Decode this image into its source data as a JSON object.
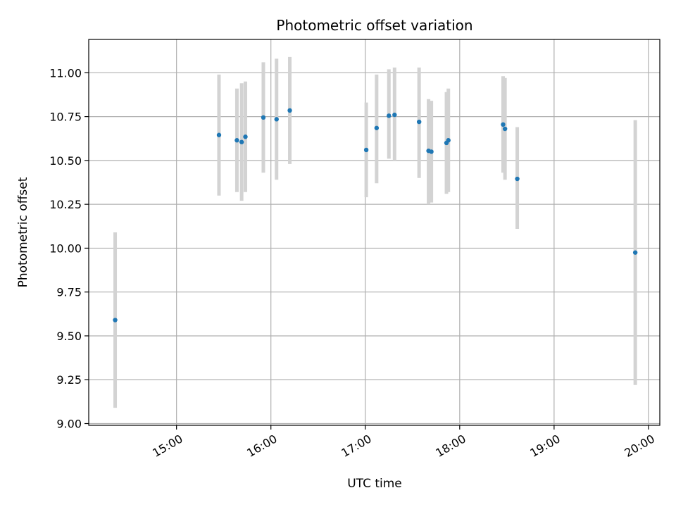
{
  "chart_data": {
    "type": "scatter",
    "title": "Photometric offset variation",
    "xlabel": "UTC time",
    "ylabel": "Photometric offset",
    "x_unit": "hours (UTC)",
    "xlim": [
      14.07,
      20.12
    ],
    "ylim": [
      8.99,
      11.19
    ],
    "x_ticks": [
      {
        "value": 15,
        "label": "15:00"
      },
      {
        "value": 16,
        "label": "16:00"
      },
      {
        "value": 17,
        "label": "17:00"
      },
      {
        "value": 18,
        "label": "18:00"
      },
      {
        "value": 19,
        "label": "19:00"
      },
      {
        "value": 20,
        "label": "20:00"
      }
    ],
    "y_ticks": [
      {
        "value": 9.0,
        "label": "9.00"
      },
      {
        "value": 9.25,
        "label": "9.25"
      },
      {
        "value": 9.5,
        "label": "9.50"
      },
      {
        "value": 9.75,
        "label": "9.75"
      },
      {
        "value": 10.0,
        "label": "10.00"
      },
      {
        "value": 10.25,
        "label": "10.25"
      },
      {
        "value": 10.5,
        "label": "10.50"
      },
      {
        "value": 10.75,
        "label": "10.75"
      },
      {
        "value": 11.0,
        "label": "11.00"
      }
    ],
    "grid": true,
    "marker_color": "#1f77b4",
    "errorbar_color": "#d3d3d3",
    "points": [
      {
        "x": 14.35,
        "y": 9.59,
        "lo": 9.09,
        "hi": 10.09
      },
      {
        "x": 15.45,
        "y": 10.645,
        "lo": 10.3,
        "hi": 10.99
      },
      {
        "x": 15.64,
        "y": 10.615,
        "lo": 10.32,
        "hi": 10.91
      },
      {
        "x": 15.69,
        "y": 10.605,
        "lo": 10.27,
        "hi": 10.94
      },
      {
        "x": 15.73,
        "y": 10.635,
        "lo": 10.32,
        "hi": 10.95
      },
      {
        "x": 15.92,
        "y": 10.745,
        "lo": 10.43,
        "hi": 11.06
      },
      {
        "x": 16.06,
        "y": 10.735,
        "lo": 10.39,
        "hi": 11.08
      },
      {
        "x": 16.2,
        "y": 10.785,
        "lo": 10.48,
        "hi": 11.09
      },
      {
        "x": 17.01,
        "y": 10.56,
        "lo": 10.29,
        "hi": 10.83
      },
      {
        "x": 17.12,
        "y": 10.685,
        "lo": 10.37,
        "hi": 10.99
      },
      {
        "x": 17.25,
        "y": 10.755,
        "lo": 10.51,
        "hi": 11.02
      },
      {
        "x": 17.31,
        "y": 10.76,
        "lo": 10.5,
        "hi": 11.03
      },
      {
        "x": 17.57,
        "y": 10.72,
        "lo": 10.4,
        "hi": 11.03
      },
      {
        "x": 17.67,
        "y": 10.555,
        "lo": 10.25,
        "hi": 10.85
      },
      {
        "x": 17.7,
        "y": 10.55,
        "lo": 10.26,
        "hi": 10.84
      },
      {
        "x": 17.86,
        "y": 10.6,
        "lo": 10.31,
        "hi": 10.89
      },
      {
        "x": 17.88,
        "y": 10.615,
        "lo": 10.32,
        "hi": 10.91
      },
      {
        "x": 18.46,
        "y": 10.705,
        "lo": 10.43,
        "hi": 10.98
      },
      {
        "x": 18.48,
        "y": 10.68,
        "lo": 10.39,
        "hi": 10.97
      },
      {
        "x": 18.61,
        "y": 10.395,
        "lo": 10.11,
        "hi": 10.69
      },
      {
        "x": 19.86,
        "y": 9.975,
        "lo": 9.22,
        "hi": 10.73
      }
    ]
  }
}
